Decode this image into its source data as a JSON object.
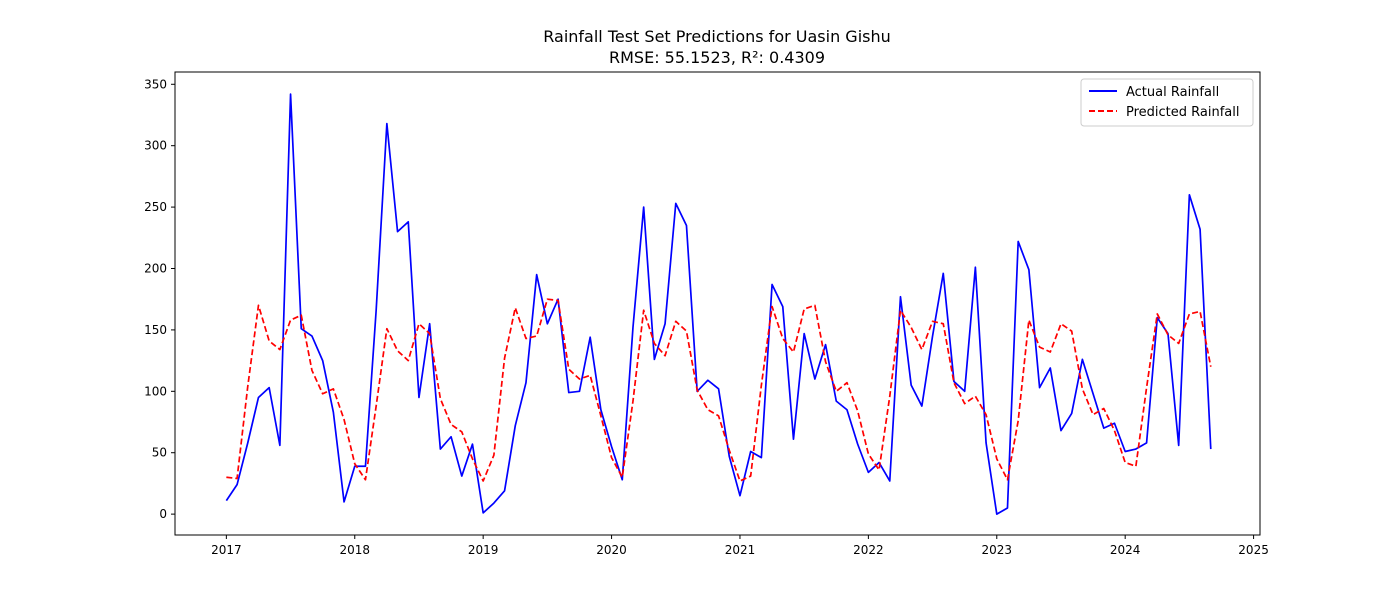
{
  "chart_data": {
    "type": "line",
    "title": "Rainfall Test Set Predictions for Uasin Gishu",
    "subtitle": "RMSE: 55.1523, R²: 0.4309",
    "xlabel": "",
    "ylabel": "",
    "xlim": [
      2016.6,
      2025.05
    ],
    "ylim": [
      -17,
      360
    ],
    "x_start": "2017-01",
    "x_step": "monthly",
    "xticks": [
      2017,
      2018,
      2019,
      2020,
      2021,
      2022,
      2023,
      2024,
      2025
    ],
    "yticks": [
      0,
      50,
      100,
      150,
      200,
      250,
      300,
      350
    ],
    "grid": false,
    "legend_position": "top-right",
    "series": [
      {
        "name": "Actual Rainfall",
        "color": "#0000ff",
        "dash": "solid",
        "values": [
          11,
          24,
          58,
          95,
          103,
          56,
          342,
          151,
          145,
          125,
          83,
          10,
          39,
          39,
          166,
          318,
          230,
          238,
          95,
          155,
          53,
          63,
          31,
          57,
          1,
          9,
          19,
          72,
          107,
          195,
          155,
          175,
          99,
          100,
          144,
          85,
          55,
          28,
          152,
          250,
          126,
          155,
          253,
          235,
          100,
          109,
          102,
          47,
          15,
          51,
          46,
          187,
          169,
          61,
          147,
          110,
          138,
          92,
          85,
          57,
          34,
          42,
          27,
          177,
          105,
          88,
          145,
          196,
          108,
          100,
          201,
          58,
          0,
          5,
          222,
          199,
          103,
          119,
          68,
          82,
          126,
          98,
          70,
          74,
          51,
          53,
          58,
          160,
          147,
          56,
          260,
          232,
          53
        ]
      },
      {
        "name": "Predicted Rainfall",
        "color": "#ff0000",
        "dash": "dashed",
        "values": [
          30,
          29,
          104,
          170,
          141,
          134,
          158,
          162,
          117,
          98,
          102,
          77,
          41,
          28,
          88,
          151,
          133,
          125,
          155,
          147,
          94,
          73,
          67,
          45,
          27,
          48,
          127,
          168,
          143,
          145,
          175,
          174,
          118,
          110,
          113,
          80,
          46,
          30,
          92,
          166,
          139,
          129,
          157,
          149,
          101,
          85,
          80,
          52,
          27,
          31,
          105,
          169,
          143,
          132,
          167,
          170,
          124,
          100,
          107,
          84,
          49,
          36,
          96,
          166,
          152,
          134,
          157,
          155,
          107,
          90,
          96,
          81,
          45,
          28,
          76,
          158,
          136,
          132,
          155,
          149,
          102,
          81,
          86,
          68,
          42,
          39,
          103,
          163,
          146,
          139,
          163,
          165,
          120
        ]
      }
    ]
  }
}
